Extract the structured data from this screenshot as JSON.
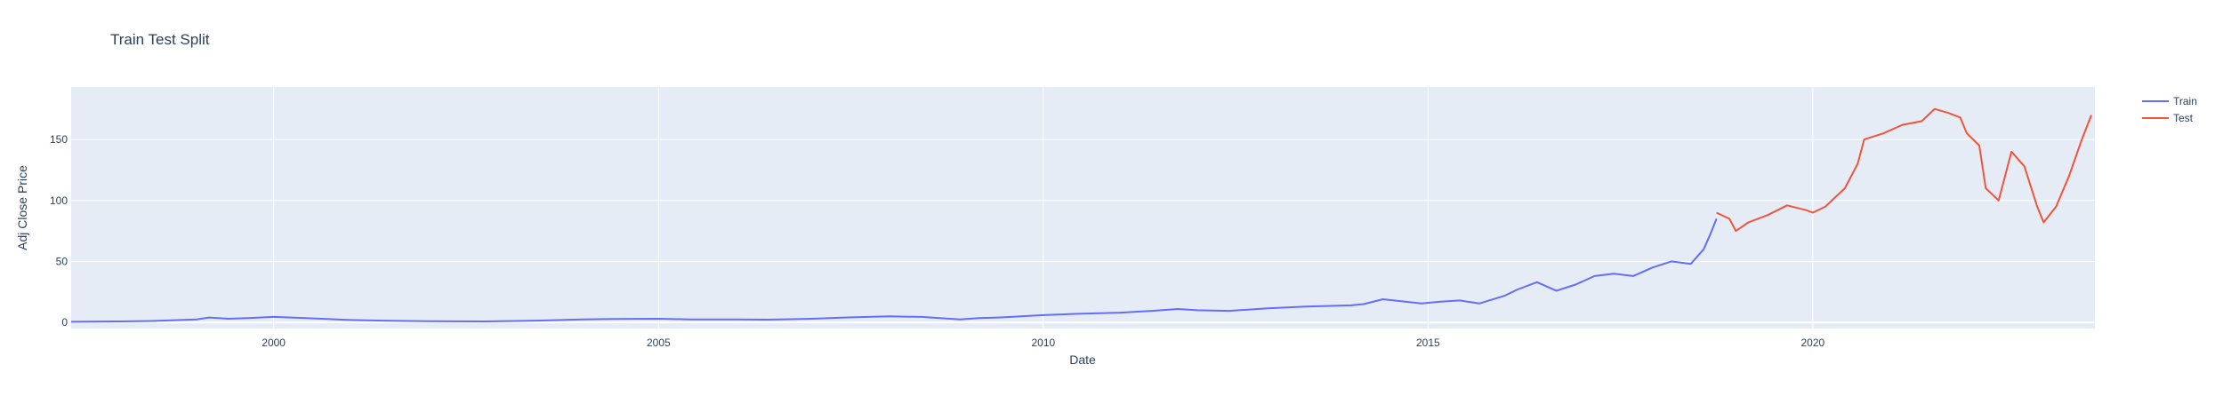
{
  "chart_data": {
    "type": "line",
    "title": "Train Test Split",
    "xlabel": "Date",
    "ylabel": "Adj Close Price",
    "xlim": [
      "1997-05-15",
      "2023-09-01"
    ],
    "ylim": [
      -5,
      193
    ],
    "x_ticks": [
      "2000-01-01",
      "2005-01-01",
      "2010-01-01",
      "2015-01-01",
      "2020-01-01"
    ],
    "x_tick_labels": [
      "2000",
      "2005",
      "2010",
      "2015",
      "2020"
    ],
    "y_ticks": [
      0,
      50,
      100,
      150
    ],
    "y_tick_labels": [
      "0",
      "50",
      "100",
      "150"
    ],
    "grid": true,
    "legend_position": "top-right",
    "series": [
      {
        "name": "Train",
        "color": "#636efa",
        "x": [
          "1997-05-15",
          "1998-01-01",
          "1998-06-01",
          "1999-01-01",
          "1999-03-01",
          "1999-06-01",
          "1999-09-01",
          "2000-01-01",
          "2000-06-01",
          "2001-01-01",
          "2001-06-01",
          "2002-01-01",
          "2002-10-01",
          "2003-06-01",
          "2004-01-01",
          "2004-06-01",
          "2005-01-01",
          "2005-06-01",
          "2006-01-01",
          "2006-06-01",
          "2007-01-01",
          "2007-06-01",
          "2008-01-01",
          "2008-06-01",
          "2008-12-01",
          "2009-03-01",
          "2009-06-01",
          "2010-01-01",
          "2010-06-01",
          "2011-01-01",
          "2011-06-01",
          "2011-10-01",
          "2012-01-01",
          "2012-06-01",
          "2012-12-01",
          "2013-06-01",
          "2014-01-01",
          "2014-03-01",
          "2014-06-01",
          "2014-12-01",
          "2015-03-01",
          "2015-06-01",
          "2015-09-01",
          "2016-01-01",
          "2016-03-01",
          "2016-06-01",
          "2016-09-01",
          "2016-12-01",
          "2017-03-01",
          "2017-06-01",
          "2017-09-01",
          "2017-12-01",
          "2018-03-01",
          "2018-06-01",
          "2018-08-01",
          "2018-09-01",
          "2018-10-01"
        ],
        "y": [
          0.5,
          0.8,
          1.2,
          2.5,
          4.0,
          3.0,
          3.5,
          4.5,
          3.5,
          2.0,
          1.5,
          1.0,
          0.8,
          1.5,
          2.5,
          2.8,
          3.0,
          2.5,
          2.5,
          2.3,
          3.0,
          4.0,
          5.0,
          4.5,
          2.5,
          3.5,
          4.0,
          6.0,
          7.0,
          8.0,
          9.5,
          11.0,
          10.0,
          9.5,
          11.5,
          13.0,
          14.0,
          15.0,
          19.0,
          15.5,
          17.0,
          18.0,
          15.5,
          22.0,
          27.0,
          33.0,
          26.0,
          31.0,
          38.0,
          40.0,
          38.0,
          45.0,
          50.0,
          48.0,
          60.0,
          72.0,
          85.0
        ]
      },
      {
        "name": "Test",
        "color": "#ef553b",
        "x": [
          "2018-10-01",
          "2018-12-01",
          "2019-01-01",
          "2019-03-01",
          "2019-06-01",
          "2019-09-01",
          "2019-12-01",
          "2020-01-01",
          "2020-03-01",
          "2020-06-01",
          "2020-08-01",
          "2020-09-01",
          "2020-12-01",
          "2021-03-01",
          "2021-06-01",
          "2021-08-01",
          "2021-10-01",
          "2021-12-01",
          "2022-01-01",
          "2022-03-01",
          "2022-04-01",
          "2022-06-01",
          "2022-08-01",
          "2022-10-01",
          "2022-12-01",
          "2023-01-01",
          "2023-03-01",
          "2023-05-01",
          "2023-07-01",
          "2023-08-15"
        ],
        "y": [
          90,
          85,
          75,
          82,
          88,
          96,
          92,
          90,
          95,
          110,
          130,
          150,
          155,
          162,
          165,
          175,
          172,
          168,
          155,
          145,
          110,
          100,
          140,
          128,
          95,
          82,
          95,
          120,
          150,
          170
        ]
      }
    ]
  }
}
